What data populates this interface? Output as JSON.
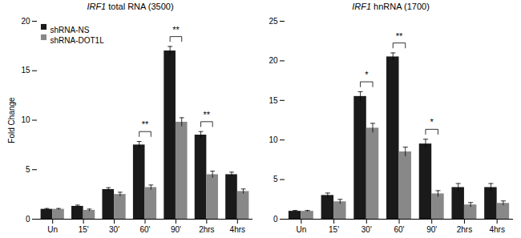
{
  "chart_data": [
    {
      "type": "bar",
      "title": "IRF1 total RNA (3500)",
      "ylabel": "Fold Change",
      "categories": [
        "Un",
        "15'",
        "30'",
        "60'",
        "90'",
        "2hrs",
        "4hrs"
      ],
      "series": [
        {
          "name": "shRNA-NS",
          "color": "#1a1a1a",
          "values": [
            1.0,
            1.3,
            3.0,
            7.5,
            17.0,
            8.5,
            4.5
          ],
          "errors": [
            0.08,
            0.12,
            0.18,
            0.35,
            0.45,
            0.35,
            0.25
          ]
        },
        {
          "name": "shRNA-DOT1L",
          "color": "#888888",
          "values": [
            1.0,
            0.9,
            2.5,
            3.2,
            9.8,
            4.5,
            2.8
          ],
          "errors": [
            0.08,
            0.12,
            0.22,
            0.25,
            0.45,
            0.35,
            0.25
          ]
        }
      ],
      "ylim": [
        0,
        20
      ],
      "yticks": [
        0,
        5,
        10,
        15,
        20
      ],
      "legend": "upper left",
      "annotations": [
        {
          "category": "60'",
          "text": "**"
        },
        {
          "category": "90'",
          "text": "**"
        },
        {
          "category": "2hrs",
          "text": "**"
        }
      ]
    },
    {
      "type": "bar",
      "title": "IRF1 hnRNA (1700)",
      "categories": [
        "Un",
        "15'",
        "30'",
        "60'",
        "90'",
        "2hrs",
        "4hrs"
      ],
      "series": [
        {
          "name": "shRNA-NS",
          "color": "#1a1a1a",
          "values": [
            1.0,
            3.0,
            15.5,
            20.5,
            9.5,
            4.0,
            4.0
          ],
          "errors": [
            0.1,
            0.3,
            0.6,
            0.5,
            0.6,
            0.5,
            0.5
          ]
        },
        {
          "name": "shRNA-DOT1L",
          "color": "#888888",
          "values": [
            1.0,
            2.2,
            11.5,
            8.5,
            3.2,
            1.8,
            2.0
          ],
          "errors": [
            0.1,
            0.3,
            0.6,
            0.6,
            0.4,
            0.3,
            0.3
          ]
        }
      ],
      "ylim": [
        0,
        25
      ],
      "yticks": [
        0,
        5,
        10,
        15,
        20,
        25
      ],
      "annotations": [
        {
          "category": "30'",
          "text": "*"
        },
        {
          "category": "60'",
          "text": "**"
        },
        {
          "category": "90'",
          "text": "*"
        }
      ]
    }
  ]
}
